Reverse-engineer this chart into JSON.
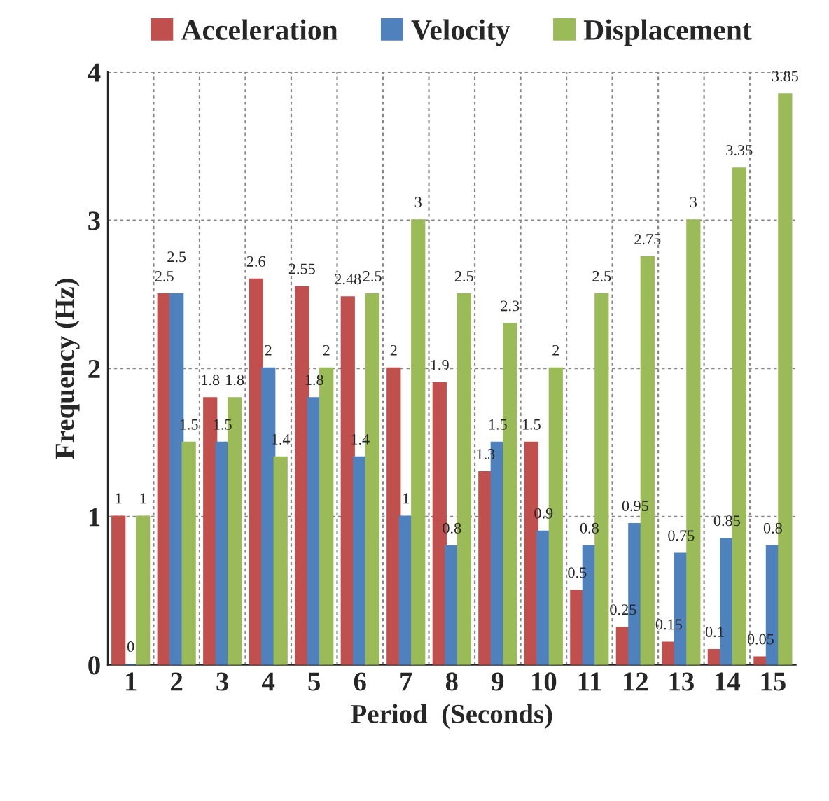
{
  "chart_data": {
    "type": "bar",
    "xlabel": "Period  (Seconds)",
    "ylabel": "Frequency (Hz)",
    "categories": [
      "1",
      "2",
      "3",
      "4",
      "5",
      "6",
      "7",
      "8",
      "9",
      "10",
      "11",
      "12",
      "13",
      "14",
      "15"
    ],
    "series": [
      {
        "name": "Acceleration",
        "color": "#c0504d",
        "values": [
          1,
          2.5,
          1.8,
          2.6,
          2.55,
          2.48,
          2,
          1.9,
          1.3,
          1.5,
          0.5,
          0.25,
          0.15,
          0.1,
          0.05
        ]
      },
      {
        "name": "Velocity",
        "color": "#4f81bd",
        "values": [
          0,
          2.5,
          1.5,
          2,
          1.8,
          1.4,
          1,
          0.8,
          1.5,
          0.9,
          0.8,
          0.95,
          0.75,
          0.85,
          0.8
        ]
      },
      {
        "name": "Displacement",
        "color": "#9bbb59",
        "values": [
          1,
          1.5,
          1.8,
          1.4,
          2,
          2.5,
          3,
          2.5,
          2.3,
          2,
          2.5,
          2.75,
          3,
          3.35,
          3.85
        ]
      }
    ],
    "ylim": [
      0,
      4
    ],
    "yticks": [
      0,
      1,
      2,
      3,
      4
    ],
    "grid": true,
    "legend": "top",
    "data_labels": true
  }
}
